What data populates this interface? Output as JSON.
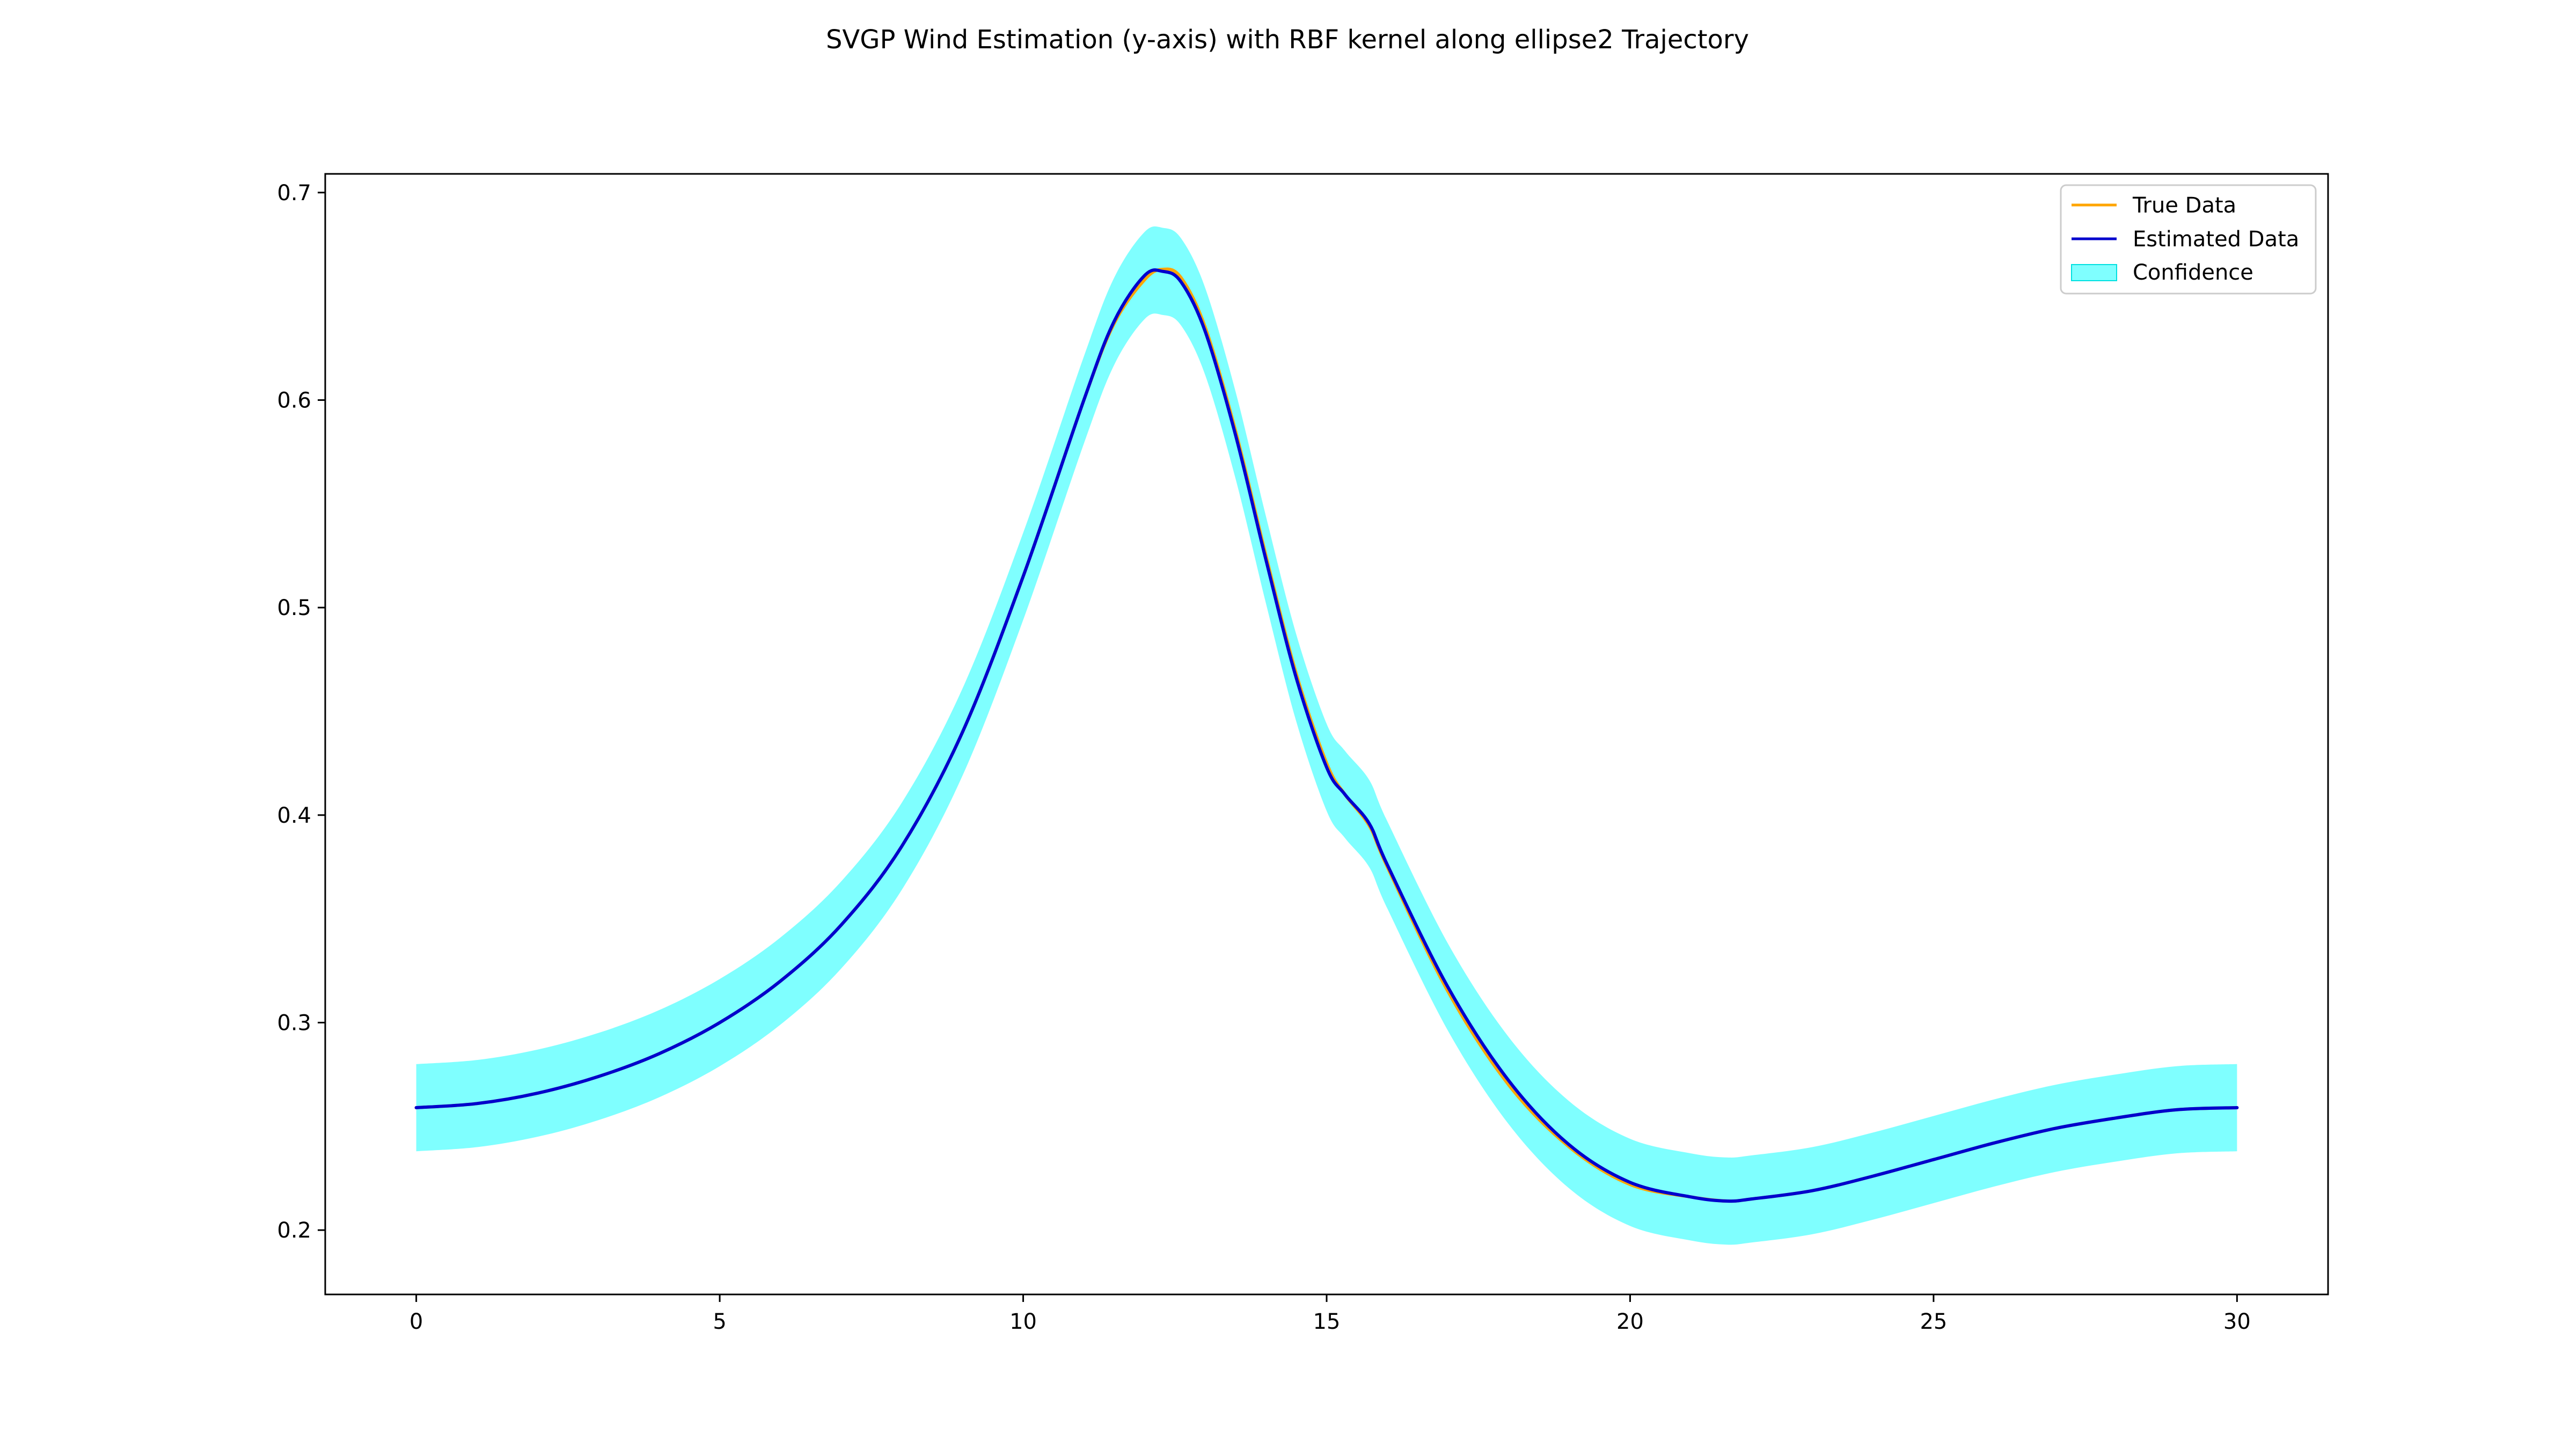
{
  "chart_data": {
    "type": "line",
    "title": "SVGP Wind Estimation (y-axis) with RBF kernel along ellipse2 Trajectory",
    "xlabel": "",
    "ylabel": "",
    "xlim": [
      -1.5,
      31.5
    ],
    "ylim": [
      0.169,
      0.709
    ],
    "xticks": [
      0,
      5,
      10,
      15,
      20,
      25,
      30
    ],
    "yticks": [
      0.2,
      0.3,
      0.4,
      0.5,
      0.6,
      0.7
    ],
    "xtick_labels": [
      "0",
      "5",
      "10",
      "15",
      "20",
      "25",
      "30"
    ],
    "ytick_labels": [
      "0.2",
      "0.3",
      "0.4",
      "0.5",
      "0.6",
      "0.7"
    ],
    "grid": false,
    "legend_position": "top-right",
    "x": [
      0,
      1,
      2,
      3,
      4,
      5,
      6,
      7,
      8,
      9,
      10,
      11,
      11.5,
      12,
      12.3,
      12.6,
      13,
      13.5,
      14,
      14.5,
      15,
      15.3,
      15.7,
      16,
      17,
      18,
      19,
      20,
      21,
      21.6,
      22,
      23,
      24,
      25,
      26,
      27,
      28,
      29,
      30
    ],
    "series": [
      {
        "name": "True Data",
        "color": "#FFA500",
        "values": [
          0.259,
          0.261,
          0.266,
          0.274,
          0.285,
          0.3,
          0.32,
          0.347,
          0.385,
          0.44,
          0.515,
          0.6,
          0.637,
          0.658,
          0.663,
          0.659,
          0.635,
          0.585,
          0.525,
          0.468,
          0.425,
          0.41,
          0.395,
          0.375,
          0.315,
          0.27,
          0.24,
          0.222,
          0.216,
          0.214,
          0.215,
          0.219,
          0.226,
          0.234,
          0.242,
          0.249,
          0.254,
          0.258,
          0.259
        ]
      },
      {
        "name": "Estimated Data",
        "color": "#0000CD",
        "values": [
          0.259,
          0.261,
          0.266,
          0.274,
          0.285,
          0.3,
          0.32,
          0.347,
          0.385,
          0.44,
          0.515,
          0.6,
          0.638,
          0.66,
          0.662,
          0.657,
          0.633,
          0.583,
          0.523,
          0.466,
          0.423,
          0.41,
          0.396,
          0.376,
          0.317,
          0.272,
          0.241,
          0.223,
          0.216,
          0.214,
          0.215,
          0.219,
          0.226,
          0.234,
          0.242,
          0.249,
          0.254,
          0.258,
          0.259
        ]
      }
    ],
    "confidence": {
      "name": "Confidence",
      "color": "#00FFFF",
      "half_width": 0.021
    }
  }
}
